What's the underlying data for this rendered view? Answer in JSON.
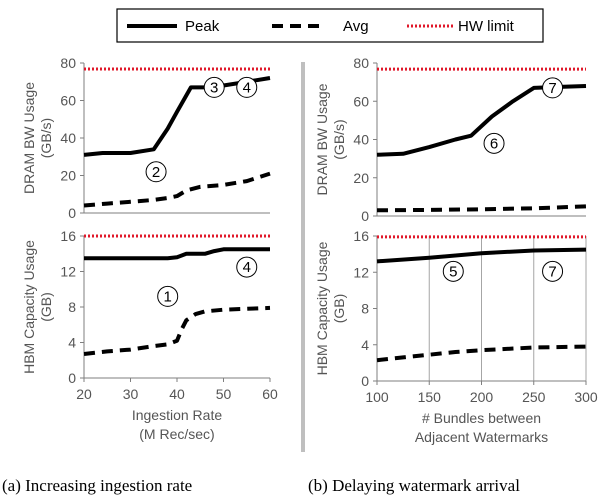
{
  "legend": {
    "items": [
      {
        "label": "Peak",
        "style": "solid"
      },
      {
        "label": "Avg",
        "style": "dashed"
      },
      {
        "label": "HW limit",
        "style": "dotted"
      }
    ]
  },
  "colors": {
    "series": "#000000",
    "limit": "#e0182a",
    "axis": "#7f7f7f",
    "text": "#555555",
    "divider": "#bfbfbf"
  },
  "captions": {
    "left": "(a) Increasing ingestion rate",
    "right": "(b) Delaying watermark arrival"
  },
  "chart_data": [
    {
      "type": "line",
      "ylabel": [
        "DRAM BW Usage",
        "(GB/s)"
      ],
      "xlim": [
        20,
        60
      ],
      "ylim": [
        0,
        80
      ],
      "yticks": [
        0,
        20,
        40,
        60,
        80
      ],
      "grid": false,
      "series": [
        {
          "name": "Peak",
          "style": "solid",
          "x": [
            20,
            24,
            27,
            30,
            35,
            38,
            40,
            43,
            46,
            50,
            55,
            60
          ],
          "y": [
            31,
            32,
            32,
            32,
            34,
            45,
            54,
            67,
            67,
            68,
            70,
            72
          ]
        },
        {
          "name": "Avg",
          "style": "dashed",
          "x": [
            20,
            25,
            30,
            35,
            38,
            40,
            42,
            45,
            50,
            55,
            60
          ],
          "y": [
            4,
            5,
            6,
            7,
            8,
            9,
            12,
            14,
            15,
            17,
            21
          ]
        },
        {
          "name": "HW limit",
          "style": "dotted",
          "x": [
            20,
            60
          ],
          "y": [
            76.8,
            76.8
          ]
        }
      ],
      "annotations": [
        {
          "label": "2",
          "x": 35.5,
          "y": 22
        },
        {
          "label": "3",
          "x": 48,
          "y": 67
        },
        {
          "label": "4",
          "x": 55,
          "y": 67
        }
      ]
    },
    {
      "type": "line",
      "ylabel": [
        "DRAM BW Usage",
        "(GB/s)"
      ],
      "xlim": [
        100,
        300
      ],
      "ylim": [
        0,
        80
      ],
      "yticks": [
        0,
        20,
        40,
        60,
        80
      ],
      "grid": false,
      "series": [
        {
          "name": "Peak",
          "style": "solid",
          "x": [
            100,
            125,
            150,
            175,
            190,
            210,
            230,
            250,
            275,
            300
          ],
          "y": [
            32,
            32.5,
            36,
            40,
            42,
            52,
            60,
            67,
            67.5,
            68
          ]
        },
        {
          "name": "Avg",
          "style": "dashed",
          "x": [
            100,
            150,
            200,
            250,
            300
          ],
          "y": [
            3,
            3.2,
            3.5,
            4,
            5
          ]
        },
        {
          "name": "HW limit",
          "style": "dotted",
          "x": [
            100,
            300
          ],
          "y": [
            76.8,
            76.8
          ]
        }
      ],
      "annotations": [
        {
          "label": "6",
          "x": 212,
          "y": 38
        },
        {
          "label": "7",
          "x": 268,
          "y": 67
        }
      ]
    },
    {
      "type": "line",
      "ylabel": [
        "HBM Capacity Usage",
        "(GB)"
      ],
      "xlabel": [
        "Ingestion Rate",
        "(M Rec/sec)"
      ],
      "xlim": [
        20,
        60
      ],
      "ylim": [
        0,
        16
      ],
      "xticks": [
        20,
        30,
        40,
        50,
        60
      ],
      "yticks": [
        0,
        4,
        8,
        12,
        16
      ],
      "grid": false,
      "series": [
        {
          "name": "Peak",
          "style": "solid",
          "x": [
            20,
            30,
            38,
            40,
            42,
            44,
            46,
            48,
            50,
            55,
            60
          ],
          "y": [
            13.5,
            13.5,
            13.5,
            13.6,
            14,
            14,
            14,
            14.3,
            14.5,
            14.5,
            14.5
          ]
        },
        {
          "name": "Avg",
          "style": "dashed",
          "x": [
            20,
            25,
            30,
            35,
            38,
            40,
            41,
            42,
            44,
            46,
            50,
            55,
            60
          ],
          "y": [
            2.7,
            3,
            3.2,
            3.6,
            3.8,
            4.2,
            5.5,
            6.5,
            7.2,
            7.5,
            7.7,
            7.8,
            7.9
          ]
        },
        {
          "name": "HW limit",
          "style": "dotted",
          "x": [
            20,
            60
          ],
          "y": [
            16,
            16
          ]
        }
      ],
      "annotations": [
        {
          "label": "1",
          "x": 38,
          "y": 9.2
        },
        {
          "label": "4",
          "x": 55,
          "y": 12.5
        }
      ]
    },
    {
      "type": "line",
      "ylabel": [
        "HBM Capacity Usage",
        "(GB)"
      ],
      "xlabel": [
        "# Bundles between",
        "Adjacent Watermarks"
      ],
      "xlim": [
        100,
        300
      ],
      "ylim": [
        0,
        16
      ],
      "xticks": [
        100,
        150,
        200,
        250,
        300
      ],
      "yticks": [
        0,
        4,
        8,
        12,
        16
      ],
      "grid": true,
      "series": [
        {
          "name": "Peak",
          "style": "solid",
          "x": [
            100,
            150,
            200,
            250,
            300
          ],
          "y": [
            13.2,
            13.6,
            14.1,
            14.4,
            14.5
          ]
        },
        {
          "name": "Avg",
          "style": "dashed",
          "x": [
            100,
            125,
            150,
            175,
            200,
            250,
            300
          ],
          "y": [
            2.3,
            2.6,
            2.9,
            3.2,
            3.4,
            3.7,
            3.8
          ]
        },
        {
          "name": "HW limit",
          "style": "dotted",
          "x": [
            100,
            300
          ],
          "y": [
            15.9,
            15.9
          ]
        }
      ],
      "annotations": [
        {
          "label": "5",
          "x": 173,
          "y": 12.1
        },
        {
          "label": "7",
          "x": 268,
          "y": 12.1
        }
      ]
    }
  ]
}
